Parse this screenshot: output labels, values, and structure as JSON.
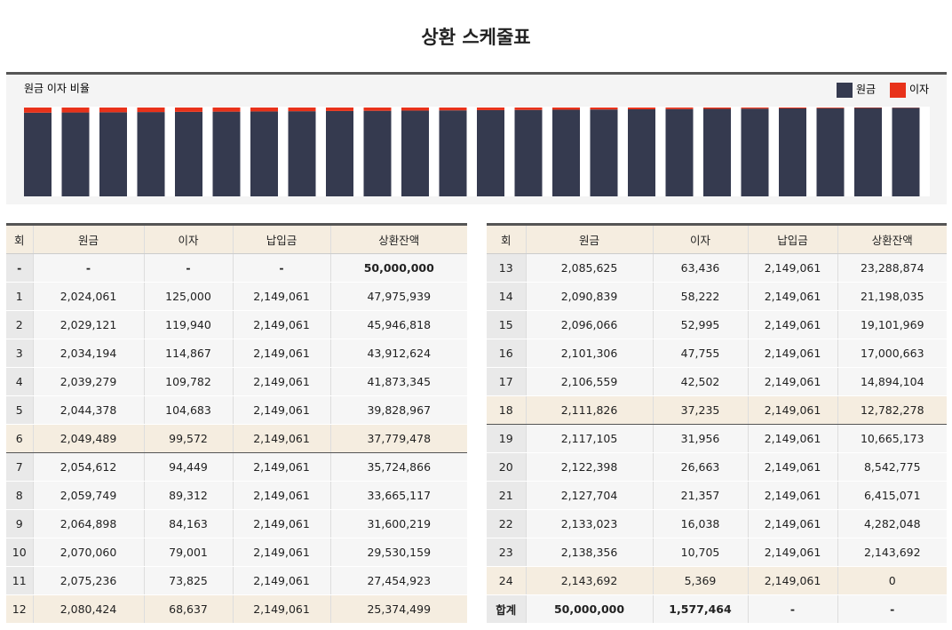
{
  "title": "상환 스케줄표",
  "chart_data": {
    "type": "bar",
    "stacking": "percent",
    "title": "원금 이자 비율",
    "categories": [
      null,
      null,
      null,
      null,
      null,
      null,
      null,
      null,
      null,
      null,
      null,
      null,
      null,
      null,
      null,
      null,
      null,
      null,
      null,
      null,
      null,
      null,
      null,
      null
    ],
    "series": [
      {
        "name": "원금",
        "color": "#353a4f",
        "values": [
          2024061,
          2029121,
          2034194,
          2039279,
          2044378,
          2049489,
          2054612,
          2059749,
          2064898,
          2070060,
          2075236,
          2080424,
          2085625,
          2090839,
          2096066,
          2101306,
          2106559,
          2111826,
          2117105,
          2122398,
          2127704,
          2133023,
          2138356,
          2143692
        ]
      },
      {
        "name": "이자",
        "color": "#e8321a",
        "values": [
          125000,
          119940,
          114867,
          109782,
          104683,
          99572,
          94449,
          89312,
          84163,
          79001,
          73825,
          68637,
          63436,
          58222,
          52995,
          47755,
          42502,
          37235,
          31956,
          26663,
          21357,
          16038,
          10705,
          5369
        ]
      }
    ]
  },
  "tables": [
    {
      "header": [
        "회",
        "원금",
        "이자",
        "납입금",
        "상환잔액"
      ],
      "rows": [
        [
          "-",
          "-",
          "-",
          "-",
          "50,000,000"
        ],
        [
          "1",
          "2,024,061",
          "125,000",
          "2,149,061",
          "47,975,939"
        ],
        [
          "2",
          "2,029,121",
          "119,940",
          "2,149,061",
          "45,946,818"
        ],
        [
          "3",
          "2,034,194",
          "114,867",
          "2,149,061",
          "43,912,624"
        ],
        [
          "4",
          "2,039,279",
          "109,782",
          "2,149,061",
          "41,873,345"
        ],
        [
          "5",
          "2,044,378",
          "104,683",
          "2,149,061",
          "39,828,967"
        ],
        [
          "6",
          "2,049,489",
          "99,572",
          "2,149,061",
          "37,779,478"
        ],
        [
          "7",
          "2,054,612",
          "94,449",
          "2,149,061",
          "35,724,866"
        ],
        [
          "8",
          "2,059,749",
          "89,312",
          "2,149,061",
          "33,665,117"
        ],
        [
          "9",
          "2,064,898",
          "84,163",
          "2,149,061",
          "31,600,219"
        ],
        [
          "10",
          "2,070,060",
          "79,001",
          "2,149,061",
          "29,530,159"
        ],
        [
          "11",
          "2,075,236",
          "73,825",
          "2,149,061",
          "27,454,923"
        ],
        [
          "12",
          "2,080,424",
          "68,637",
          "2,149,061",
          "25,374,499"
        ]
      ]
    },
    {
      "header": [
        "회",
        "원금",
        "이자",
        "납입금",
        "상환잔액"
      ],
      "rows": [
        [
          "13",
          "2,085,625",
          "63,436",
          "2,149,061",
          "23,288,874"
        ],
        [
          "14",
          "2,090,839",
          "58,222",
          "2,149,061",
          "21,198,035"
        ],
        [
          "15",
          "2,096,066",
          "52,995",
          "2,149,061",
          "19,101,969"
        ],
        [
          "16",
          "2,101,306",
          "47,755",
          "2,149,061",
          "17,000,663"
        ],
        [
          "17",
          "2,106,559",
          "42,502",
          "2,149,061",
          "14,894,104"
        ],
        [
          "18",
          "2,111,826",
          "37,235",
          "2,149,061",
          "12,782,278"
        ],
        [
          "19",
          "2,117,105",
          "31,956",
          "2,149,061",
          "10,665,173"
        ],
        [
          "20",
          "2,122,398",
          "26,663",
          "2,149,061",
          "8,542,775"
        ],
        [
          "21",
          "2,127,704",
          "21,357",
          "2,149,061",
          "6,415,071"
        ],
        [
          "22",
          "2,133,023",
          "16,038",
          "2,149,061",
          "4,282,048"
        ],
        [
          "23",
          "2,138,356",
          "10,705",
          "2,149,061",
          "2,143,692"
        ],
        [
          "24",
          "2,143,692",
          "5,369",
          "2,149,061",
          "0"
        ],
        [
          "합계",
          "50,000,000",
          "1,577,464",
          "-",
          "-"
        ]
      ]
    }
  ]
}
